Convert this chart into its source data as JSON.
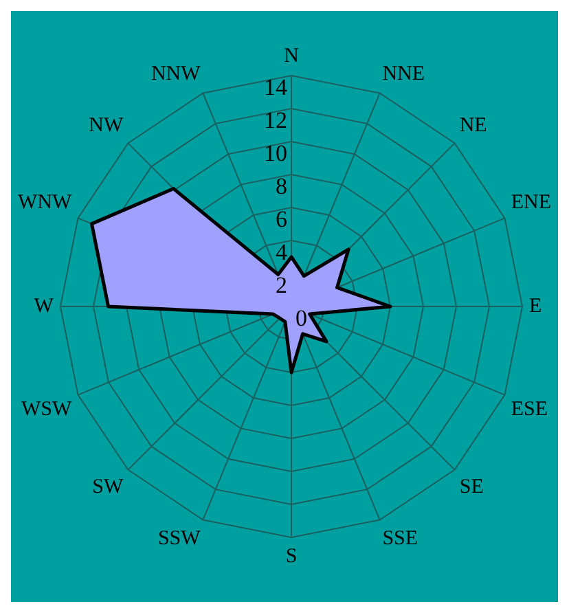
{
  "chart_data": {
    "type": "radar",
    "categories": [
      "N",
      "NNE",
      "NE",
      "ENE",
      "E",
      "ESE",
      "SE",
      "SSE",
      "S",
      "SSW",
      "SW",
      "WSW",
      "W",
      "WNW",
      "NW",
      "NNW"
    ],
    "series": [
      {
        "color": "#a0a0ff",
        "values": [
          3,
          2,
          4.9,
          3,
          6,
          1.2,
          3,
          1.8,
          4,
          1,
          1,
          1.2,
          11.1,
          13.1,
          10.1,
          2.1
        ]
      }
    ],
    "ylim": [
      0,
      14
    ],
    "yticks": [
      0,
      2,
      4,
      6,
      8,
      10,
      12,
      14
    ],
    "grid": true,
    "legend": false
  }
}
